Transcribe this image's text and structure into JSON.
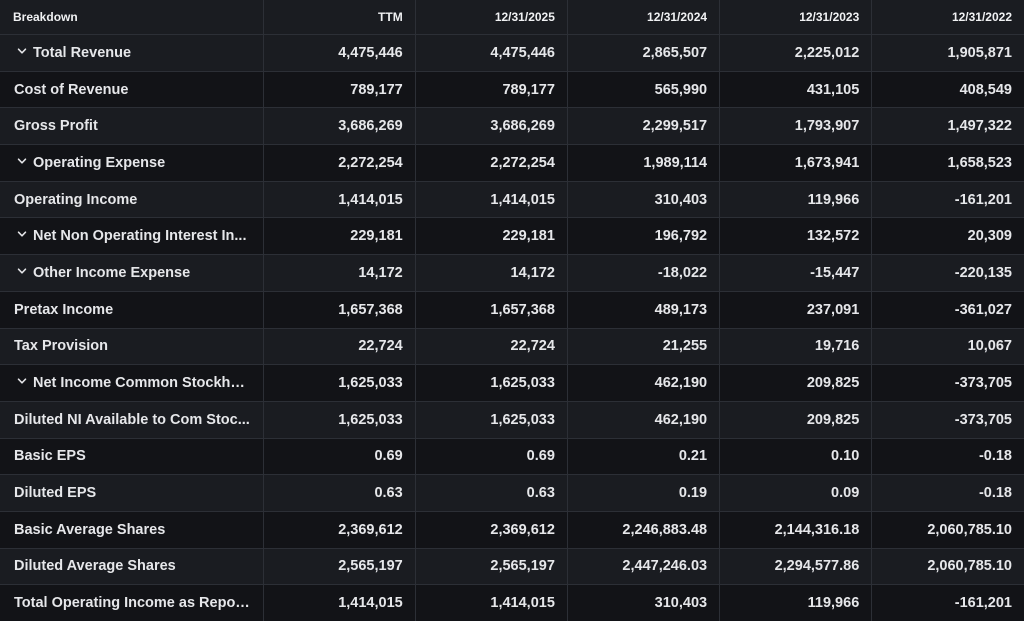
{
  "table": {
    "headers": [
      "Breakdown",
      "TTM",
      "12/31/2025",
      "12/31/2024",
      "12/31/2023",
      "12/31/2022"
    ],
    "rows": [
      {
        "label": "Total Revenue",
        "expandable": true,
        "values": [
          "4,475,446",
          "4,475,446",
          "2,865,507",
          "2,225,012",
          "1,905,871"
        ]
      },
      {
        "label": "Cost of Revenue",
        "expandable": false,
        "values": [
          "789,177",
          "789,177",
          "565,990",
          "431,105",
          "408,549"
        ]
      },
      {
        "label": "Gross Profit",
        "expandable": false,
        "values": [
          "3,686,269",
          "3,686,269",
          "2,299,517",
          "1,793,907",
          "1,497,322"
        ]
      },
      {
        "label": "Operating Expense",
        "expandable": true,
        "values": [
          "2,272,254",
          "2,272,254",
          "1,989,114",
          "1,673,941",
          "1,658,523"
        ]
      },
      {
        "label": "Operating Income",
        "expandable": false,
        "values": [
          "1,414,015",
          "1,414,015",
          "310,403",
          "119,966",
          "-161,201"
        ]
      },
      {
        "label": "Net Non Operating Interest In...",
        "expandable": true,
        "values": [
          "229,181",
          "229,181",
          "196,792",
          "132,572",
          "20,309"
        ]
      },
      {
        "label": "Other Income Expense",
        "expandable": true,
        "values": [
          "14,172",
          "14,172",
          "-18,022",
          "-15,447",
          "-220,135"
        ]
      },
      {
        "label": "Pretax Income",
        "expandable": false,
        "values": [
          "1,657,368",
          "1,657,368",
          "489,173",
          "237,091",
          "-361,027"
        ]
      },
      {
        "label": "Tax Provision",
        "expandable": false,
        "values": [
          "22,724",
          "22,724",
          "21,255",
          "19,716",
          "10,067"
        ]
      },
      {
        "label": "Net Income Common Stockho...",
        "expandable": true,
        "values": [
          "1,625,033",
          "1,625,033",
          "462,190",
          "209,825",
          "-373,705"
        ]
      },
      {
        "label": "Diluted NI Available to Com Stoc...",
        "expandable": false,
        "values": [
          "1,625,033",
          "1,625,033",
          "462,190",
          "209,825",
          "-373,705"
        ]
      },
      {
        "label": "Basic EPS",
        "expandable": false,
        "values": [
          "0.69",
          "0.69",
          "0.21",
          "0.10",
          "-0.18"
        ]
      },
      {
        "label": "Diluted EPS",
        "expandable": false,
        "values": [
          "0.63",
          "0.63",
          "0.19",
          "0.09",
          "-0.18"
        ]
      },
      {
        "label": "Basic Average Shares",
        "expandable": false,
        "values": [
          "2,369,612",
          "2,369,612",
          "2,246,883.48",
          "2,144,316.18",
          "2,060,785.10"
        ]
      },
      {
        "label": "Diluted Average Shares",
        "expandable": false,
        "values": [
          "2,565,197",
          "2,565,197",
          "2,447,246.03",
          "2,294,577.86",
          "2,060,785.10"
        ]
      },
      {
        "label": "Total Operating Income as Repor...",
        "expandable": false,
        "values": [
          "1,414,015",
          "1,414,015",
          "310,403",
          "119,966",
          "-161,201"
        ]
      }
    ]
  },
  "icons": {
    "expand": "chevron-down-icon"
  },
  "colors": {
    "background": "#101114",
    "row_odd": "#1a1c21",
    "row_even": "#121317",
    "border": "#2c2f36",
    "text": "#e6e7ea"
  }
}
